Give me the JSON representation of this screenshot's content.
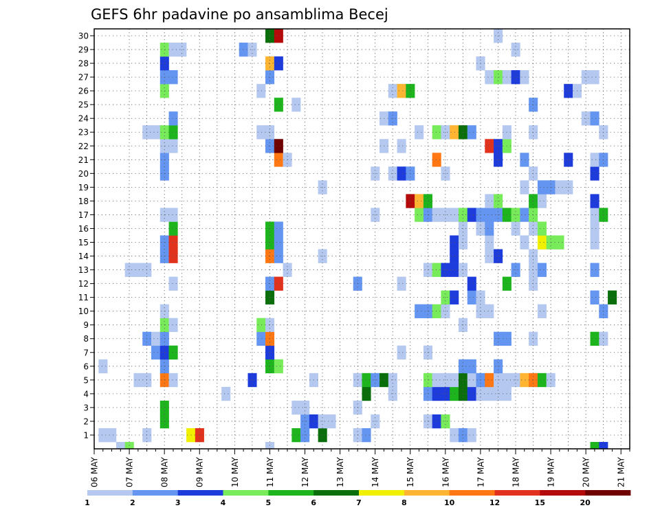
{
  "chart_data": {
    "type": "heatmap",
    "title": "GEFS 6hr padavine po ansamblima Becej",
    "xlabel": "",
    "ylabel": "",
    "x_start": "2021-05-06T00:00",
    "x_end": "2021-05-21T06:00",
    "x_step_hours": 6,
    "x_tick_labels": [
      "06 MAY",
      "07 MAY",
      "08 MAY",
      "09 MAY",
      "10 MAY",
      "11 MAY",
      "12 MAY",
      "13 MAY",
      "14 MAY",
      "15 MAY",
      "16 MAY",
      "17 MAY",
      "18 MAY",
      "19 MAY",
      "20 MAY",
      "21 MAY"
    ],
    "y_tick_labels": [
      "1",
      "2",
      "3",
      "4",
      "5",
      "6",
      "7",
      "8",
      "9",
      "10",
      "11",
      "12",
      "13",
      "14",
      "15",
      "16",
      "17",
      "18",
      "19",
      "20",
      "21",
      "22",
      "23",
      "24",
      "25",
      "26",
      "27",
      "28",
      "29",
      "30"
    ],
    "ylim": [
      0,
      30
    ],
    "colorbar": {
      "colors": [
        "#b4c8f0",
        "#6495f0",
        "#1e3cdc",
        "#78eb5a",
        "#1eb41e",
        "#0a6e0a",
        "#f0f000",
        "#ffb432",
        "#ff7814",
        "#e1321e",
        "#b40a0a",
        "#6e0000"
      ],
      "tick_labels": [
        "1",
        "2",
        "3",
        "4",
        "5",
        "6",
        "7",
        "8",
        "10",
        "12",
        "15",
        "20"
      ]
    },
    "cells": [
      [
        1,
        1,
        1
      ],
      [
        2,
        1,
        1
      ],
      [
        6,
        1,
        1
      ],
      [
        11,
        1,
        7
      ],
      [
        12,
        1,
        10
      ],
      [
        23,
        1,
        5
      ],
      [
        24,
        1,
        2
      ],
      [
        26,
        1,
        6
      ],
      [
        30,
        1,
        1
      ],
      [
        31,
        1,
        2
      ],
      [
        41,
        1,
        1
      ],
      [
        42,
        1,
        2
      ],
      [
        43,
        1,
        1
      ],
      [
        8,
        2,
        5
      ],
      [
        24,
        2,
        2
      ],
      [
        25,
        2,
        3
      ],
      [
        26,
        2,
        1
      ],
      [
        27,
        2,
        1
      ],
      [
        32,
        2,
        1
      ],
      [
        38,
        2,
        1
      ],
      [
        39,
        2,
        3
      ],
      [
        40,
        2,
        4
      ],
      [
        8,
        3,
        5
      ],
      [
        23,
        3,
        1
      ],
      [
        24,
        3,
        1
      ],
      [
        30,
        3,
        1
      ],
      [
        15,
        4,
        1
      ],
      [
        31,
        4,
        6
      ],
      [
        34,
        4,
        1
      ],
      [
        38,
        4,
        2
      ],
      [
        39,
        4,
        3
      ],
      [
        40,
        4,
        3
      ],
      [
        41,
        4,
        5
      ],
      [
        42,
        4,
        6
      ],
      [
        43,
        4,
        3
      ],
      [
        44,
        4,
        1
      ],
      [
        45,
        4,
        1
      ],
      [
        46,
        4,
        1
      ],
      [
        47,
        4,
        1
      ],
      [
        5,
        5,
        1
      ],
      [
        6,
        5,
        1
      ],
      [
        8,
        5,
        9
      ],
      [
        9,
        5,
        1
      ],
      [
        18,
        5,
        3
      ],
      [
        25,
        5,
        1
      ],
      [
        30,
        5,
        1
      ],
      [
        31,
        5,
        5
      ],
      [
        32,
        5,
        2
      ],
      [
        33,
        5,
        6
      ],
      [
        34,
        5,
        1
      ],
      [
        38,
        5,
        4
      ],
      [
        39,
        5,
        1
      ],
      [
        40,
        5,
        1
      ],
      [
        41,
        5,
        1
      ],
      [
        42,
        5,
        6
      ],
      [
        43,
        5,
        1
      ],
      [
        44,
        5,
        2
      ],
      [
        45,
        5,
        9
      ],
      [
        46,
        5,
        1
      ],
      [
        47,
        5,
        1
      ],
      [
        48,
        5,
        1
      ],
      [
        49,
        5,
        8
      ],
      [
        50,
        5,
        9
      ],
      [
        51,
        5,
        5
      ],
      [
        52,
        5,
        1
      ],
      [
        1,
        6,
        1
      ],
      [
        8,
        6,
        2
      ],
      [
        20,
        6,
        5
      ],
      [
        21,
        6,
        4
      ],
      [
        42,
        6,
        2
      ],
      [
        43,
        6,
        2
      ],
      [
        46,
        6,
        2
      ],
      [
        7,
        7,
        2
      ],
      [
        8,
        7,
        3
      ],
      [
        9,
        7,
        5
      ],
      [
        20,
        7,
        3
      ],
      [
        35,
        7,
        1
      ],
      [
        38,
        7,
        1
      ],
      [
        6,
        8,
        2
      ],
      [
        7,
        8,
        1
      ],
      [
        8,
        8,
        2
      ],
      [
        19,
        8,
        2
      ],
      [
        20,
        8,
        9
      ],
      [
        46,
        8,
        2
      ],
      [
        47,
        8,
        2
      ],
      [
        50,
        8,
        1
      ],
      [
        57,
        8,
        5
      ],
      [
        58,
        8,
        1
      ],
      [
        8,
        9,
        4
      ],
      [
        9,
        9,
        1
      ],
      [
        19,
        9,
        4
      ],
      [
        20,
        9,
        1
      ],
      [
        42,
        9,
        1
      ],
      [
        8,
        10,
        1
      ],
      [
        37,
        10,
        2
      ],
      [
        38,
        10,
        2
      ],
      [
        39,
        10,
        4
      ],
      [
        40,
        10,
        1
      ],
      [
        44,
        10,
        1
      ],
      [
        45,
        10,
        1
      ],
      [
        51,
        10,
        1
      ],
      [
        58,
        10,
        2
      ],
      [
        20,
        11,
        6
      ],
      [
        40,
        11,
        4
      ],
      [
        41,
        11,
        3
      ],
      [
        43,
        11,
        2
      ],
      [
        44,
        11,
        1
      ],
      [
        57,
        11,
        2
      ],
      [
        59,
        11,
        6
      ],
      [
        9,
        12,
        1
      ],
      [
        20,
        12,
        2
      ],
      [
        21,
        12,
        10
      ],
      [
        30,
        12,
        2
      ],
      [
        35,
        12,
        1
      ],
      [
        43,
        12,
        3
      ],
      [
        47,
        12,
        5
      ],
      [
        50,
        12,
        1
      ],
      [
        4,
        13,
        1
      ],
      [
        5,
        13,
        1
      ],
      [
        6,
        13,
        1
      ],
      [
        22,
        13,
        1
      ],
      [
        38,
        13,
        1
      ],
      [
        39,
        13,
        4
      ],
      [
        40,
        13,
        3
      ],
      [
        41,
        13,
        3
      ],
      [
        42,
        13,
        1
      ],
      [
        48,
        13,
        2
      ],
      [
        50,
        13,
        1
      ],
      [
        51,
        13,
        2
      ],
      [
        57,
        13,
        2
      ],
      [
        8,
        14,
        2
      ],
      [
        9,
        14,
        10
      ],
      [
        20,
        14,
        9
      ],
      [
        21,
        14,
        2
      ],
      [
        26,
        14,
        1
      ],
      [
        41,
        14,
        3
      ],
      [
        45,
        14,
        1
      ],
      [
        46,
        14,
        3
      ],
      [
        50,
        14,
        1
      ],
      [
        8,
        15,
        2
      ],
      [
        9,
        15,
        10
      ],
      [
        20,
        15,
        5
      ],
      [
        21,
        15,
        2
      ],
      [
        41,
        15,
        3
      ],
      [
        42,
        15,
        1
      ],
      [
        45,
        15,
        1
      ],
      [
        49,
        15,
        1
      ],
      [
        51,
        15,
        7
      ],
      [
        52,
        15,
        4
      ],
      [
        53,
        15,
        4
      ],
      [
        57,
        15,
        1
      ],
      [
        9,
        16,
        5
      ],
      [
        20,
        16,
        5
      ],
      [
        21,
        16,
        2
      ],
      [
        42,
        16,
        1
      ],
      [
        44,
        16,
        1
      ],
      [
        45,
        16,
        2
      ],
      [
        48,
        16,
        1
      ],
      [
        50,
        16,
        1
      ],
      [
        51,
        16,
        4
      ],
      [
        57,
        16,
        1
      ],
      [
        8,
        17,
        1
      ],
      [
        9,
        17,
        1
      ],
      [
        32,
        17,
        1
      ],
      [
        37,
        17,
        4
      ],
      [
        38,
        17,
        2
      ],
      [
        39,
        17,
        1
      ],
      [
        40,
        17,
        1
      ],
      [
        41,
        17,
        1
      ],
      [
        42,
        17,
        4
      ],
      [
        43,
        17,
        3
      ],
      [
        44,
        17,
        2
      ],
      [
        45,
        17,
        2
      ],
      [
        46,
        17,
        2
      ],
      [
        47,
        17,
        5
      ],
      [
        48,
        17,
        4
      ],
      [
        49,
        17,
        2
      ],
      [
        50,
        17,
        4
      ],
      [
        57,
        17,
        1
      ],
      [
        58,
        17,
        5
      ],
      [
        36,
        18,
        11
      ],
      [
        37,
        18,
        8
      ],
      [
        38,
        18,
        5
      ],
      [
        45,
        18,
        1
      ],
      [
        46,
        18,
        4
      ],
      [
        50,
        18,
        5
      ],
      [
        51,
        18,
        1
      ],
      [
        57,
        18,
        3
      ],
      [
        26,
        19,
        1
      ],
      [
        49,
        19,
        1
      ],
      [
        51,
        19,
        2
      ],
      [
        52,
        19,
        2
      ],
      [
        53,
        19,
        1
      ],
      [
        54,
        19,
        1
      ],
      [
        8,
        20,
        2
      ],
      [
        32,
        20,
        1
      ],
      [
        34,
        20,
        1
      ],
      [
        35,
        20,
        3
      ],
      [
        36,
        20,
        2
      ],
      [
        40,
        20,
        1
      ],
      [
        50,
        20,
        1
      ],
      [
        57,
        20,
        3
      ],
      [
        8,
        21,
        2
      ],
      [
        21,
        21,
        9
      ],
      [
        22,
        21,
        1
      ],
      [
        39,
        21,
        9
      ],
      [
        46,
        21,
        3
      ],
      [
        49,
        21,
        2
      ],
      [
        54,
        21,
        3
      ],
      [
        57,
        21,
        1
      ],
      [
        58,
        21,
        2
      ],
      [
        8,
        22,
        1
      ],
      [
        9,
        22,
        1
      ],
      [
        20,
        22,
        2
      ],
      [
        21,
        22,
        12
      ],
      [
        33,
        22,
        1
      ],
      [
        35,
        22,
        1
      ],
      [
        45,
        22,
        10
      ],
      [
        46,
        22,
        3
      ],
      [
        47,
        22,
        4
      ],
      [
        6,
        23,
        1
      ],
      [
        7,
        23,
        1
      ],
      [
        8,
        23,
        4
      ],
      [
        9,
        23,
        5
      ],
      [
        19,
        23,
        1
      ],
      [
        20,
        23,
        1
      ],
      [
        37,
        23,
        1
      ],
      [
        39,
        23,
        4
      ],
      [
        40,
        23,
        1
      ],
      [
        41,
        23,
        8
      ],
      [
        42,
        23,
        6
      ],
      [
        43,
        23,
        2
      ],
      [
        47,
        23,
        1
      ],
      [
        50,
        23,
        1
      ],
      [
        58,
        23,
        1
      ],
      [
        9,
        24,
        2
      ],
      [
        33,
        24,
        1
      ],
      [
        34,
        24,
        2
      ],
      [
        56,
        24,
        1
      ],
      [
        57,
        24,
        2
      ],
      [
        21,
        25,
        5
      ],
      [
        23,
        25,
        1
      ],
      [
        50,
        25,
        2
      ],
      [
        8,
        26,
        4
      ],
      [
        19,
        26,
        1
      ],
      [
        34,
        26,
        1
      ],
      [
        35,
        26,
        8
      ],
      [
        36,
        26,
        5
      ],
      [
        54,
        26,
        3
      ],
      [
        55,
        26,
        1
      ],
      [
        8,
        27,
        2
      ],
      [
        9,
        27,
        2
      ],
      [
        20,
        27,
        2
      ],
      [
        45,
        27,
        1
      ],
      [
        46,
        27,
        4
      ],
      [
        47,
        27,
        1
      ],
      [
        48,
        27,
        3
      ],
      [
        49,
        27,
        1
      ],
      [
        56,
        27,
        1
      ],
      [
        57,
        27,
        1
      ],
      [
        8,
        28,
        3
      ],
      [
        20,
        28,
        8
      ],
      [
        21,
        28,
        3
      ],
      [
        44,
        28,
        1
      ],
      [
        8,
        29,
        4
      ],
      [
        9,
        29,
        1
      ],
      [
        10,
        29,
        1
      ],
      [
        17,
        29,
        2
      ],
      [
        18,
        29,
        1
      ],
      [
        48,
        29,
        1
      ],
      [
        20,
        30,
        6
      ],
      [
        21,
        30,
        11
      ],
      [
        46,
        30,
        1
      ],
      [
        3,
        0,
        1
      ],
      [
        4,
        0,
        4
      ],
      [
        20,
        0,
        1
      ],
      [
        57,
        0,
        5
      ],
      [
        58,
        0,
        3
      ]
    ]
  }
}
